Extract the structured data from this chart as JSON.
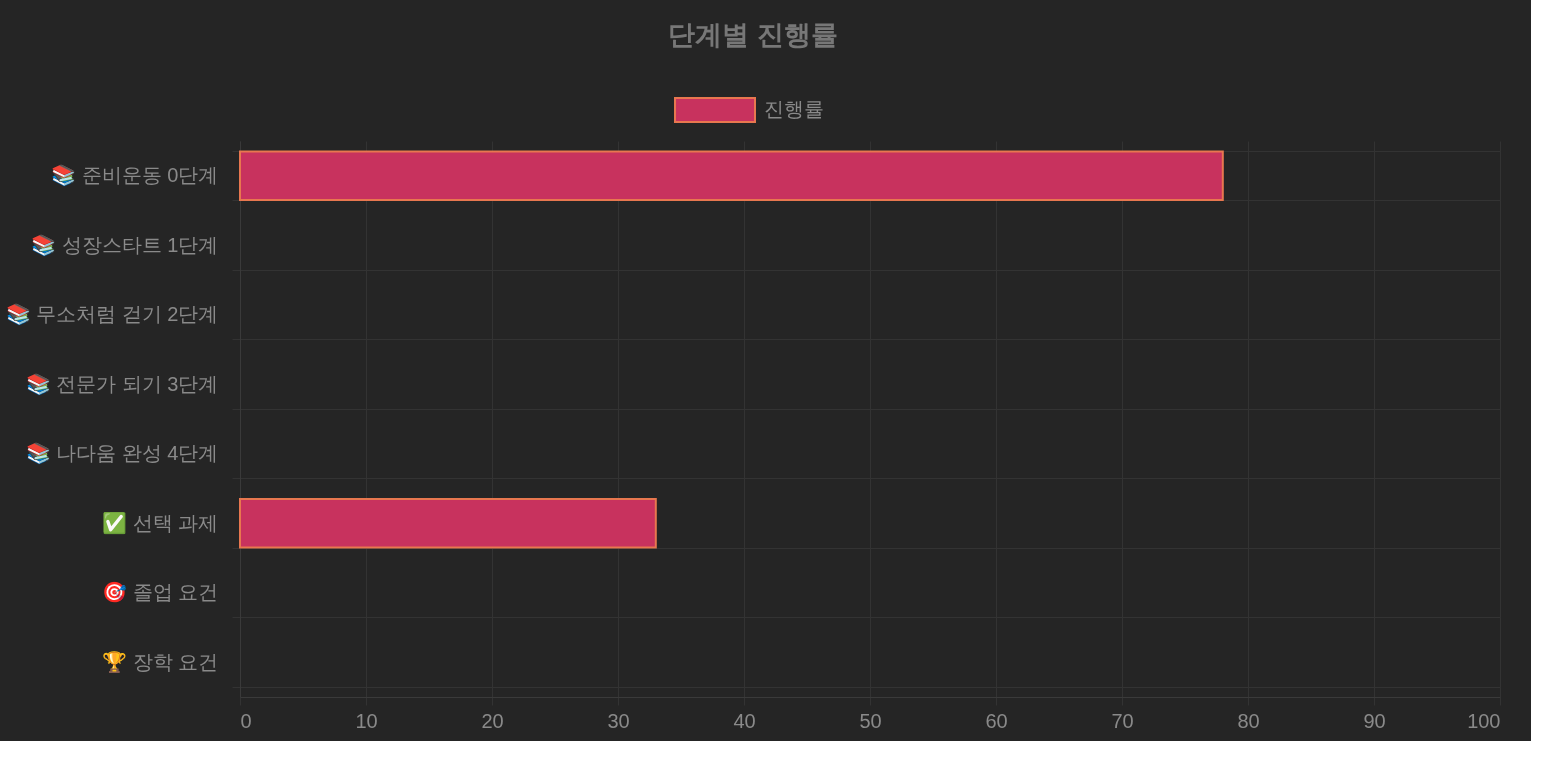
{
  "chart_data": {
    "type": "bar",
    "orientation": "horizontal",
    "title": "단계별 진행률",
    "categories": [
      "📚 준비운동 0단계",
      "📚 성장스타트 1단계",
      "📚 무소처럼 걷기 2단계",
      "📚 전문가 되기 3단계",
      "📚 나다움 완성 4단계",
      "✅ 선택 과제",
      "🎯 졸업 요건",
      "🏆 장학 요건"
    ],
    "series": [
      {
        "name": "진행률",
        "color": "#c8325e",
        "values": [
          78,
          0,
          0,
          0,
          0,
          33,
          0,
          0
        ]
      }
    ],
    "xlim": [
      0,
      100
    ],
    "xticks": [
      0,
      10,
      20,
      30,
      40,
      50,
      60,
      70,
      80,
      90,
      100
    ],
    "grid": true,
    "legend": "top"
  }
}
